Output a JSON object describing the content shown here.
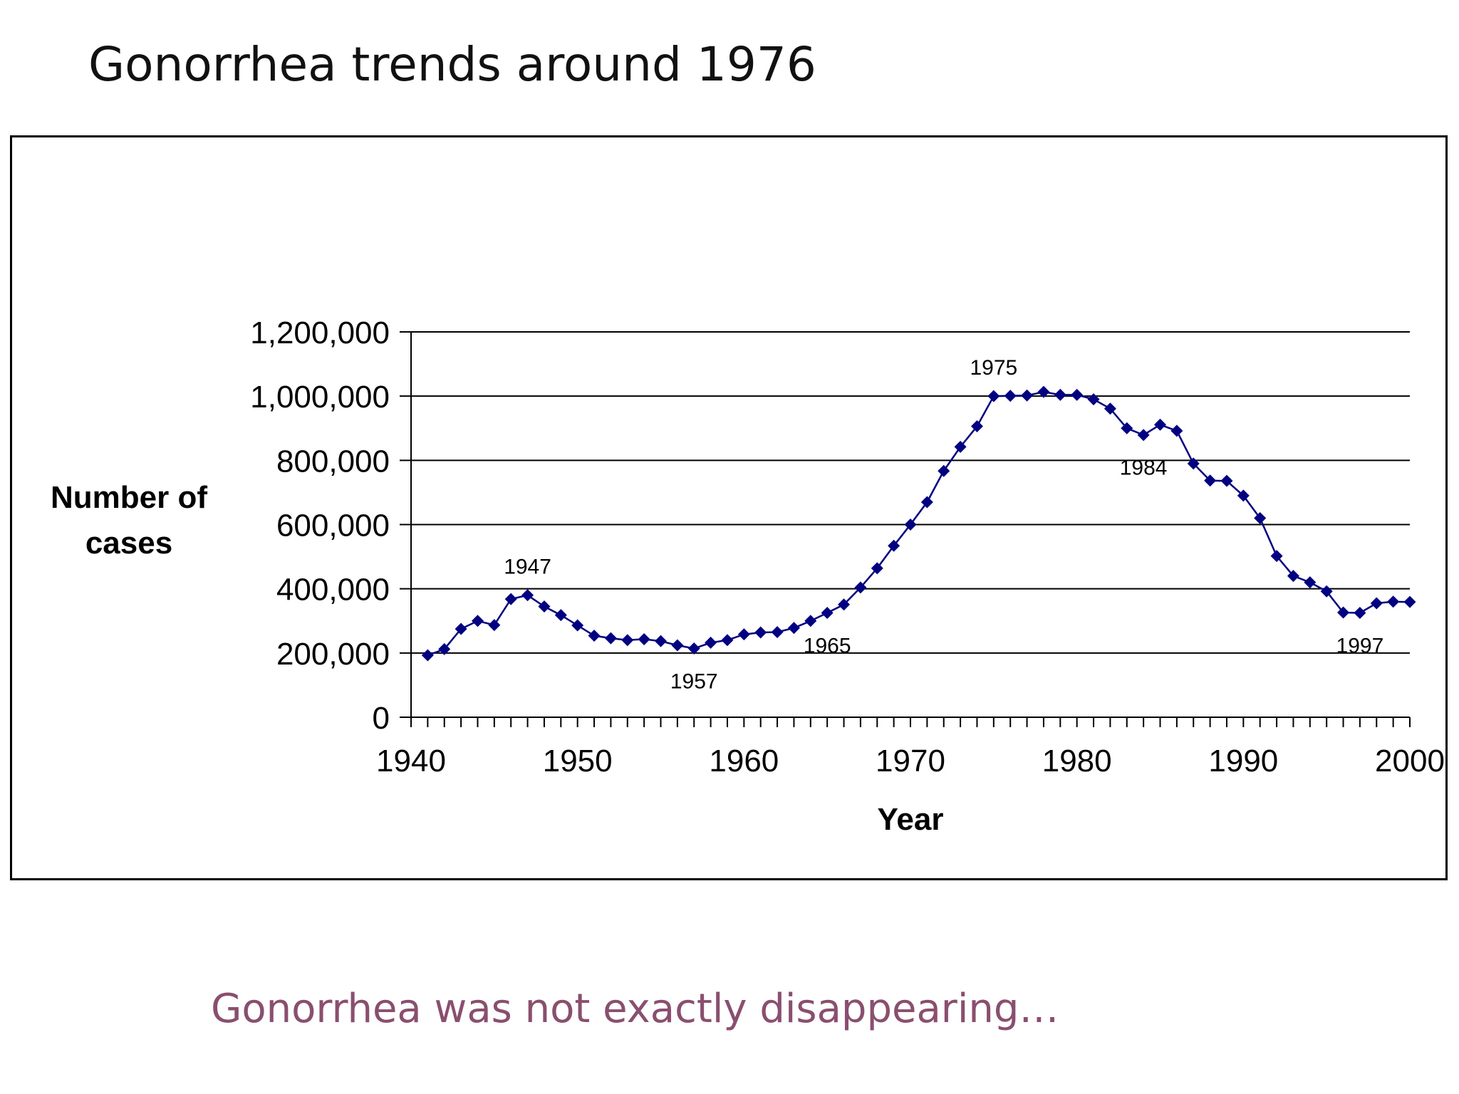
{
  "slide": {
    "title": "Gonorrhea trends around 1976",
    "subtitle": "Gonorrhea was not exactly disappearing…"
  },
  "chart_data": {
    "type": "line",
    "xlabel": "Year",
    "ylabel_lines": [
      "Number of",
      "cases"
    ],
    "xlim": [
      1940,
      2000
    ],
    "ylim": [
      0,
      1200000
    ],
    "x_ticks": [
      "1940",
      "1950",
      "1960",
      "1970",
      "1980",
      "1990",
      "2000"
    ],
    "y_ticks": [
      "0",
      "200,000",
      "400,000",
      "600,000",
      "800,000",
      "1,000,000",
      "1,200,000"
    ],
    "grid": "horizontal",
    "line_color": "#000080",
    "marker": "diamond",
    "x": [
      1941,
      1942,
      1943,
      1944,
      1945,
      1946,
      1947,
      1948,
      1949,
      1950,
      1951,
      1952,
      1953,
      1954,
      1955,
      1956,
      1957,
      1958,
      1959,
      1960,
      1961,
      1962,
      1963,
      1964,
      1965,
      1966,
      1967,
      1968,
      1969,
      1970,
      1971,
      1972,
      1973,
      1974,
      1975,
      1976,
      1977,
      1978,
      1979,
      1980,
      1981,
      1982,
      1983,
      1984,
      1985,
      1986,
      1987,
      1988,
      1989,
      1990,
      1991,
      1992,
      1993,
      1994,
      1995,
      1996,
      1997,
      1998,
      1999,
      2000
    ],
    "values": [
      193000,
      212000,
      275000,
      300000,
      287000,
      368000,
      380000,
      345000,
      318000,
      286000,
      254000,
      246000,
      240000,
      243000,
      237000,
      224000,
      214000,
      232000,
      240000,
      258000,
      264000,
      265000,
      278000,
      300000,
      325000,
      351000,
      404000,
      464000,
      534000,
      600000,
      670000,
      767000,
      842000,
      906000,
      1000000,
      1001000,
      1002000,
      1013000,
      1004000,
      1004000,
      990000,
      961000,
      900000,
      879000,
      911000,
      892000,
      790000,
      737000,
      736000,
      690000,
      620000,
      502000,
      440000,
      420000,
      392000,
      326000,
      325000,
      355000,
      360000,
      359000
    ],
    "annotations": [
      {
        "label": "1947",
        "x": 1947,
        "value": 380000,
        "position": "above"
      },
      {
        "label": "1957",
        "x": 1957,
        "value": 214000,
        "position": "below"
      },
      {
        "label": "1965",
        "x": 1965,
        "value": 325000,
        "position": "below"
      },
      {
        "label": "1975",
        "x": 1975,
        "value": 1000000,
        "position": "above"
      },
      {
        "label": "1984",
        "x": 1984,
        "value": 879000,
        "position": "below"
      },
      {
        "label": "1997",
        "x": 1997,
        "value": 325000,
        "position": "below"
      }
    ]
  }
}
